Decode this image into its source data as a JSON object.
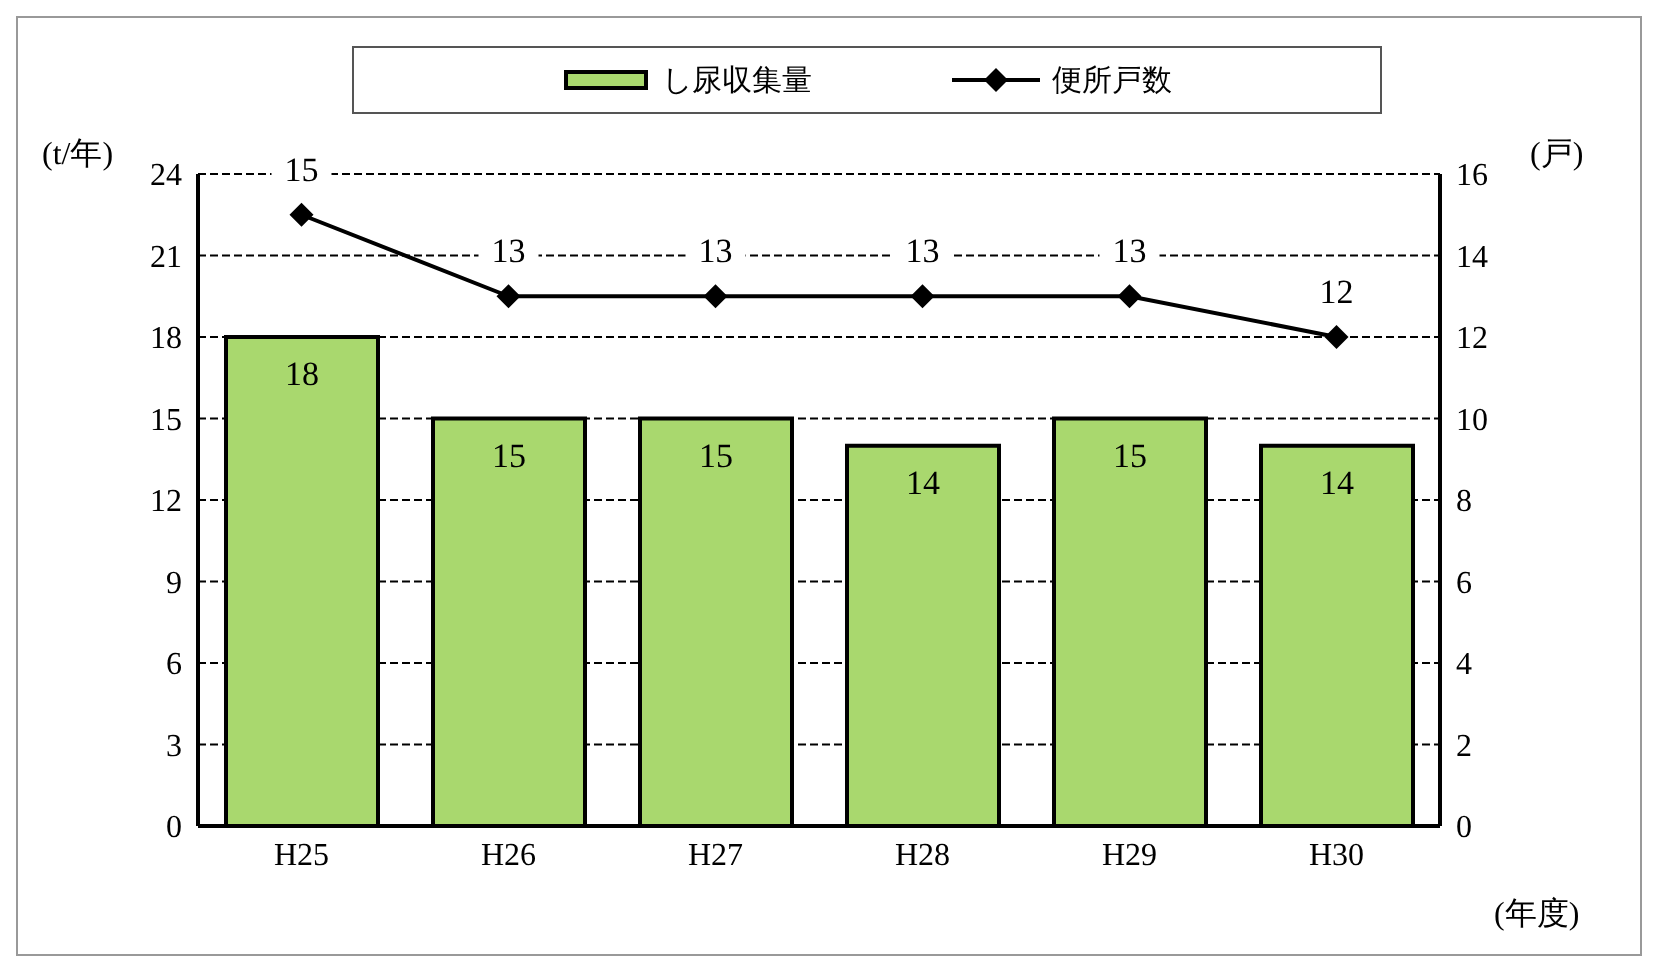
{
  "chart_data": {
    "type": "bar",
    "categories": [
      "H25",
      "H26",
      "H27",
      "H28",
      "H29",
      "H30"
    ],
    "series": [
      {
        "name": "し尿収集量",
        "color": "#a9d86e",
        "values": [
          18,
          15,
          15,
          14,
          15,
          14
        ]
      },
      {
        "name": "便所戸数",
        "type": "line",
        "axis": "y2",
        "color": "#000000",
        "values": [
          15,
          13,
          13,
          13,
          13,
          12
        ]
      }
    ],
    "ylabel": "(t/年)",
    "y2label": "(戸)",
    "xlabel": "(年度)",
    "ylim": [
      0,
      24
    ],
    "yticks": [
      0,
      3,
      6,
      9,
      12,
      15,
      18,
      21,
      24
    ],
    "y2lim": [
      0,
      16
    ],
    "y2ticks": [
      0,
      2,
      4,
      6,
      8,
      10,
      12,
      14,
      16
    ],
    "grid": "y",
    "legend": "top",
    "marker": "diamond",
    "data_labels": true
  }
}
